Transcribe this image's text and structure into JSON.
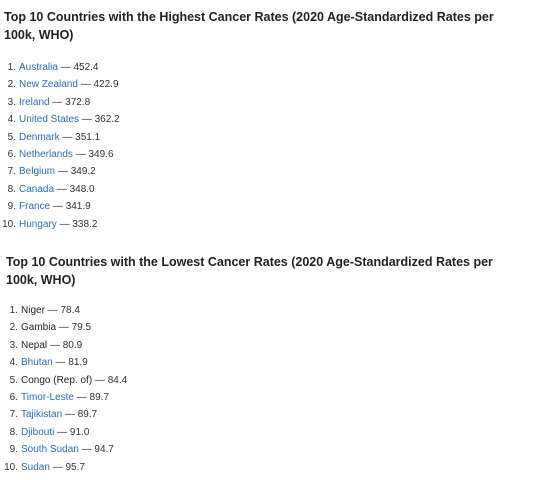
{
  "highest": {
    "title": "Top 10 Countries with the Highest Cancer Rates (2020 Age-Standardized Rates per 100k, WHO)",
    "separator": " — ",
    "items": [
      {
        "rank": "1",
        "country": "Australia",
        "value": "452.4",
        "link": true
      },
      {
        "rank": "2",
        "country": "New Zealand",
        "value": "422.9",
        "link": true
      },
      {
        "rank": "3",
        "country": "Ireland",
        "value": "372.8",
        "link": true
      },
      {
        "rank": "4",
        "country": "United States",
        "value": "362.2",
        "link": true
      },
      {
        "rank": "5",
        "country": "Denmark",
        "value": "351.1",
        "link": true
      },
      {
        "rank": "6",
        "country": "Netherlands",
        "value": "349.6",
        "link": true
      },
      {
        "rank": "7",
        "country": "Belgium",
        "value": "349.2",
        "link": true
      },
      {
        "rank": "8",
        "country": "Canada",
        "value": "348.0",
        "link": true
      },
      {
        "rank": "9",
        "country": "France",
        "value": "341.9",
        "link": true
      },
      {
        "rank": "10",
        "country": "Hungary",
        "value": "338.2",
        "link": true
      }
    ]
  },
  "lowest": {
    "title": "Top 10 Countries with the Lowest Cancer Rates (2020 Age-Standardized Rates per 100k, WHO)",
    "separator": " — ",
    "items": [
      {
        "rank": "1",
        "country": "Niger",
        "value": "78.4",
        "link": false
      },
      {
        "rank": "2",
        "country": "Gambia",
        "value": "79.5",
        "link": false
      },
      {
        "rank": "3",
        "country": "Nepal",
        "value": "80.9",
        "link": false
      },
      {
        "rank": "4",
        "country": "Bhutan",
        "value": "81.9",
        "link": true
      },
      {
        "rank": "5",
        "country": "Congo (Rep. of)",
        "value": "84.4",
        "link": false
      },
      {
        "rank": "6",
        "country": "Timor-Leste",
        "value": "89.7",
        "link": true
      },
      {
        "rank": "7",
        "country": "Tajikistan",
        "value": "89.7",
        "link": true
      },
      {
        "rank": "8",
        "country": "Djibouti",
        "value": "91.0",
        "link": true
      },
      {
        "rank": "9",
        "country": "South Sudan",
        "value": "94.7",
        "link": true
      },
      {
        "rank": "10",
        "country": "Sudan",
        "value": "95.7",
        "link": true
      }
    ]
  },
  "colors": {
    "link": "#2b6cb0",
    "text": "#222222"
  }
}
